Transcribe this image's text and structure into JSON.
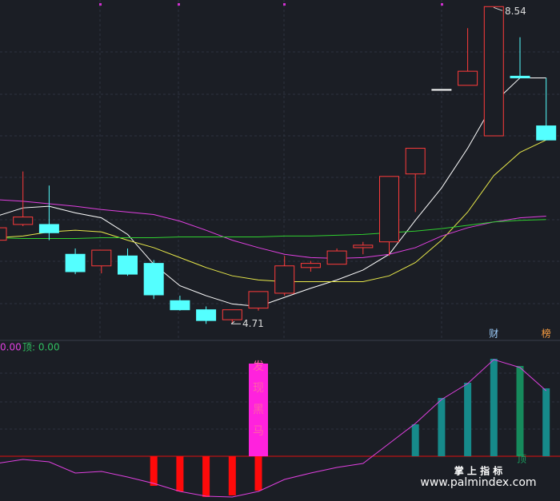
{
  "chart_data": [
    {
      "type": "candlestick",
      "categories": [
        null,
        null,
        null,
        null,
        null,
        null,
        null,
        null,
        null,
        null,
        null,
        null,
        null,
        null,
        null,
        null,
        null,
        null,
        null,
        null,
        null,
        null
      ],
      "open": [
        5.72,
        5.91,
        5.91,
        5.55,
        5.41,
        5.53,
        5.44,
        4.99,
        4.88,
        4.76,
        4.9,
        5.08,
        5.39,
        5.43,
        5.63,
        5.7,
        6.52,
        7.54,
        7.59,
        6.98,
        7.7,
        7.1
      ],
      "close": [
        5.87,
        6.0,
        5.81,
        5.34,
        5.6,
        5.31,
        5.06,
        4.88,
        4.75,
        4.88,
        5.1,
        5.41,
        5.44,
        5.59,
        5.66,
        6.49,
        6.83,
        7.54,
        7.76,
        8.54,
        7.68,
        6.93
      ],
      "high": [
        5.88,
        6.55,
        6.38,
        5.62,
        5.6,
        5.62,
        5.48,
        5.05,
        4.92,
        4.88,
        5.1,
        5.53,
        5.47,
        5.62,
        5.7,
        6.49,
        6.83,
        7.54,
        8.28,
        8.54,
        8.17,
        7.68
      ],
      "low": [
        5.7,
        5.89,
        5.72,
        5.31,
        5.32,
        5.29,
        5.01,
        4.87,
        4.71,
        4.71,
        4.87,
        5.05,
        5.34,
        5.43,
        5.55,
        5.53,
        6.06,
        7.54,
        7.59,
        6.98,
        7.68,
        6.93
      ],
      "up_color": "#ff3b3b",
      "down_color": "#54ffff",
      "flat_color": "#ffffff",
      "series": [
        {
          "color": "#ffffff",
          "values": [
            6.01,
            6.11,
            6.13,
            6.05,
            5.99,
            5.79,
            5.43,
            5.17,
            5.05,
            4.95,
            4.92,
            5.03,
            5.14,
            5.24,
            5.36,
            5.55,
            5.96,
            6.35,
            6.83,
            7.38,
            7.68,
            7.68
          ]
        },
        {
          "color": "#e8e84a",
          "values": [
            5.75,
            5.77,
            5.82,
            5.84,
            5.82,
            5.72,
            5.63,
            5.51,
            5.39,
            5.29,
            5.24,
            5.22,
            5.22,
            5.22,
            5.22,
            5.29,
            5.45,
            5.72,
            6.06,
            6.5,
            6.78,
            6.93
          ]
        },
        {
          "color": "#e040e0",
          "values": [
            6.21,
            6.19,
            6.16,
            6.13,
            6.09,
            6.06,
            6.03,
            5.95,
            5.84,
            5.72,
            5.63,
            5.55,
            5.51,
            5.5,
            5.51,
            5.55,
            5.63,
            5.77,
            5.87,
            5.94,
            5.99,
            6.01
          ]
        },
        {
          "color": "#30d030",
          "values": [
            5.75,
            5.74,
            5.74,
            5.74,
            5.75,
            5.75,
            5.75,
            5.76,
            5.76,
            5.76,
            5.76,
            5.77,
            5.77,
            5.78,
            5.79,
            5.81,
            5.83,
            5.86,
            5.9,
            5.94,
            5.96,
            5.97
          ]
        }
      ],
      "ylim": [
        4.52,
        8.62
      ],
      "high_mark": 8.54,
      "low_mark": 4.71,
      "badges": [
        "财",
        "榜"
      ]
    },
    {
      "type": "indicator",
      "legend": [
        "0.00",
        "顶: 0.00"
      ],
      "legend_colors": [
        "#e040e0",
        "#30c060"
      ],
      "bars": [
        null,
        null,
        null,
        null,
        null,
        null,
        -37,
        -44,
        -51,
        -49,
        -43,
        null,
        null,
        null,
        null,
        null,
        40,
        73,
        92,
        122,
        113,
        85
      ],
      "bar_colors": [
        null,
        null,
        null,
        null,
        null,
        null,
        "#ff0a0a",
        "#ff0a0a",
        "#ff0a0a",
        "#ff0a0a",
        "#ff0a0a",
        null,
        null,
        null,
        null,
        null,
        "#168a8a",
        "#168a8a",
        "#168a8a",
        "#168a8a",
        "#168a5c",
        "#168a8a"
      ],
      "signal_values": [
        null,
        null,
        null,
        null,
        null,
        null,
        null,
        null,
        null,
        null,
        116,
        null,
        null,
        null,
        null,
        null,
        null,
        null,
        null,
        null,
        null,
        null
      ],
      "signal_text": "发现黑马",
      "signal_color": "#ff22dd",
      "line": {
        "color": "#e040e0",
        "values": [
          -9,
          -4,
          -7,
          -21,
          -19,
          -26,
          -34,
          -44,
          -50,
          -51,
          -44,
          -29,
          -21,
          -14,
          -9,
          16,
          41,
          71,
          91,
          121,
          111,
          82
        ]
      },
      "zero_color": "#e01010",
      "top_label": "顶",
      "ylim": [
        -56,
        144
      ],
      "watermark": [
        "掌 上 指 标",
        "www.palmindex.com"
      ]
    }
  ]
}
